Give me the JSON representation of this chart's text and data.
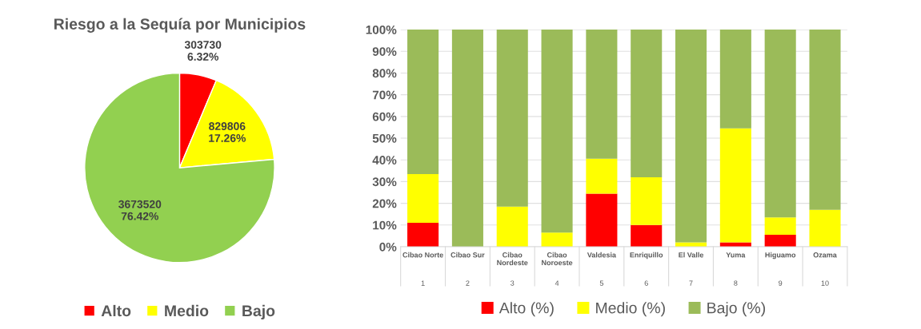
{
  "chart_data": [
    {
      "type": "pie",
      "title": "Riesgo a la Sequía por Municipios",
      "categories": [
        "Alto",
        "Medio",
        "Bajo"
      ],
      "values": [
        303730,
        829806,
        3673520
      ],
      "colors": [
        "#ff0000",
        "#ffff00",
        "#92d050"
      ],
      "value_labels": [
        "303730\n6.32%",
        "829806\n17.26%",
        "3673520\n76.42%"
      ],
      "legend": "bottom"
    },
    {
      "type": "bar",
      "stacked": true,
      "categories": [
        "Cibao Norte\n1",
        "Cibao Sur\n2",
        "Cibao\nNordeste\n3",
        "Cibao\nNoroeste\n4",
        "Valdesia\n5",
        "Enriquillo\n6",
        "El Valle\n7",
        "Yuma\n8",
        "Higuamo\n9",
        "Ozama\n10"
      ],
      "series": [
        {
          "name": "Alto (%)",
          "color": "#ff0000",
          "values": [
            11,
            0,
            0,
            0,
            24.5,
            10,
            0,
            2,
            5.5,
            0
          ]
        },
        {
          "name": "Medio (%)",
          "color": "#ffff00",
          "values": [
            22.5,
            0,
            18.5,
            6.5,
            16,
            22,
            2,
            52.5,
            8,
            17
          ]
        },
        {
          "name": "Bajo (%)",
          "color": "#9bbb59",
          "values": [
            66.5,
            100,
            81.5,
            93.5,
            59.5,
            68,
            98,
            45.5,
            86.5,
            83
          ]
        }
      ],
      "ylim": [
        0,
        100
      ],
      "yticks": [
        {
          "value": 0,
          "label": "0%"
        },
        {
          "value": 10,
          "label": "10%"
        },
        {
          "value": 20,
          "label": "20%"
        },
        {
          "value": 30,
          "label": "30%"
        },
        {
          "value": 40,
          "label": "40%"
        },
        {
          "value": 50,
          "label": "50%"
        },
        {
          "value": 60,
          "label": "60%"
        },
        {
          "value": 70,
          "label": "70%"
        },
        {
          "value": 80,
          "label": "80%"
        },
        {
          "value": 90,
          "label": "90%"
        },
        {
          "value": 100,
          "label": "100%"
        }
      ],
      "grid": "y",
      "legend": "bottom"
    }
  ]
}
